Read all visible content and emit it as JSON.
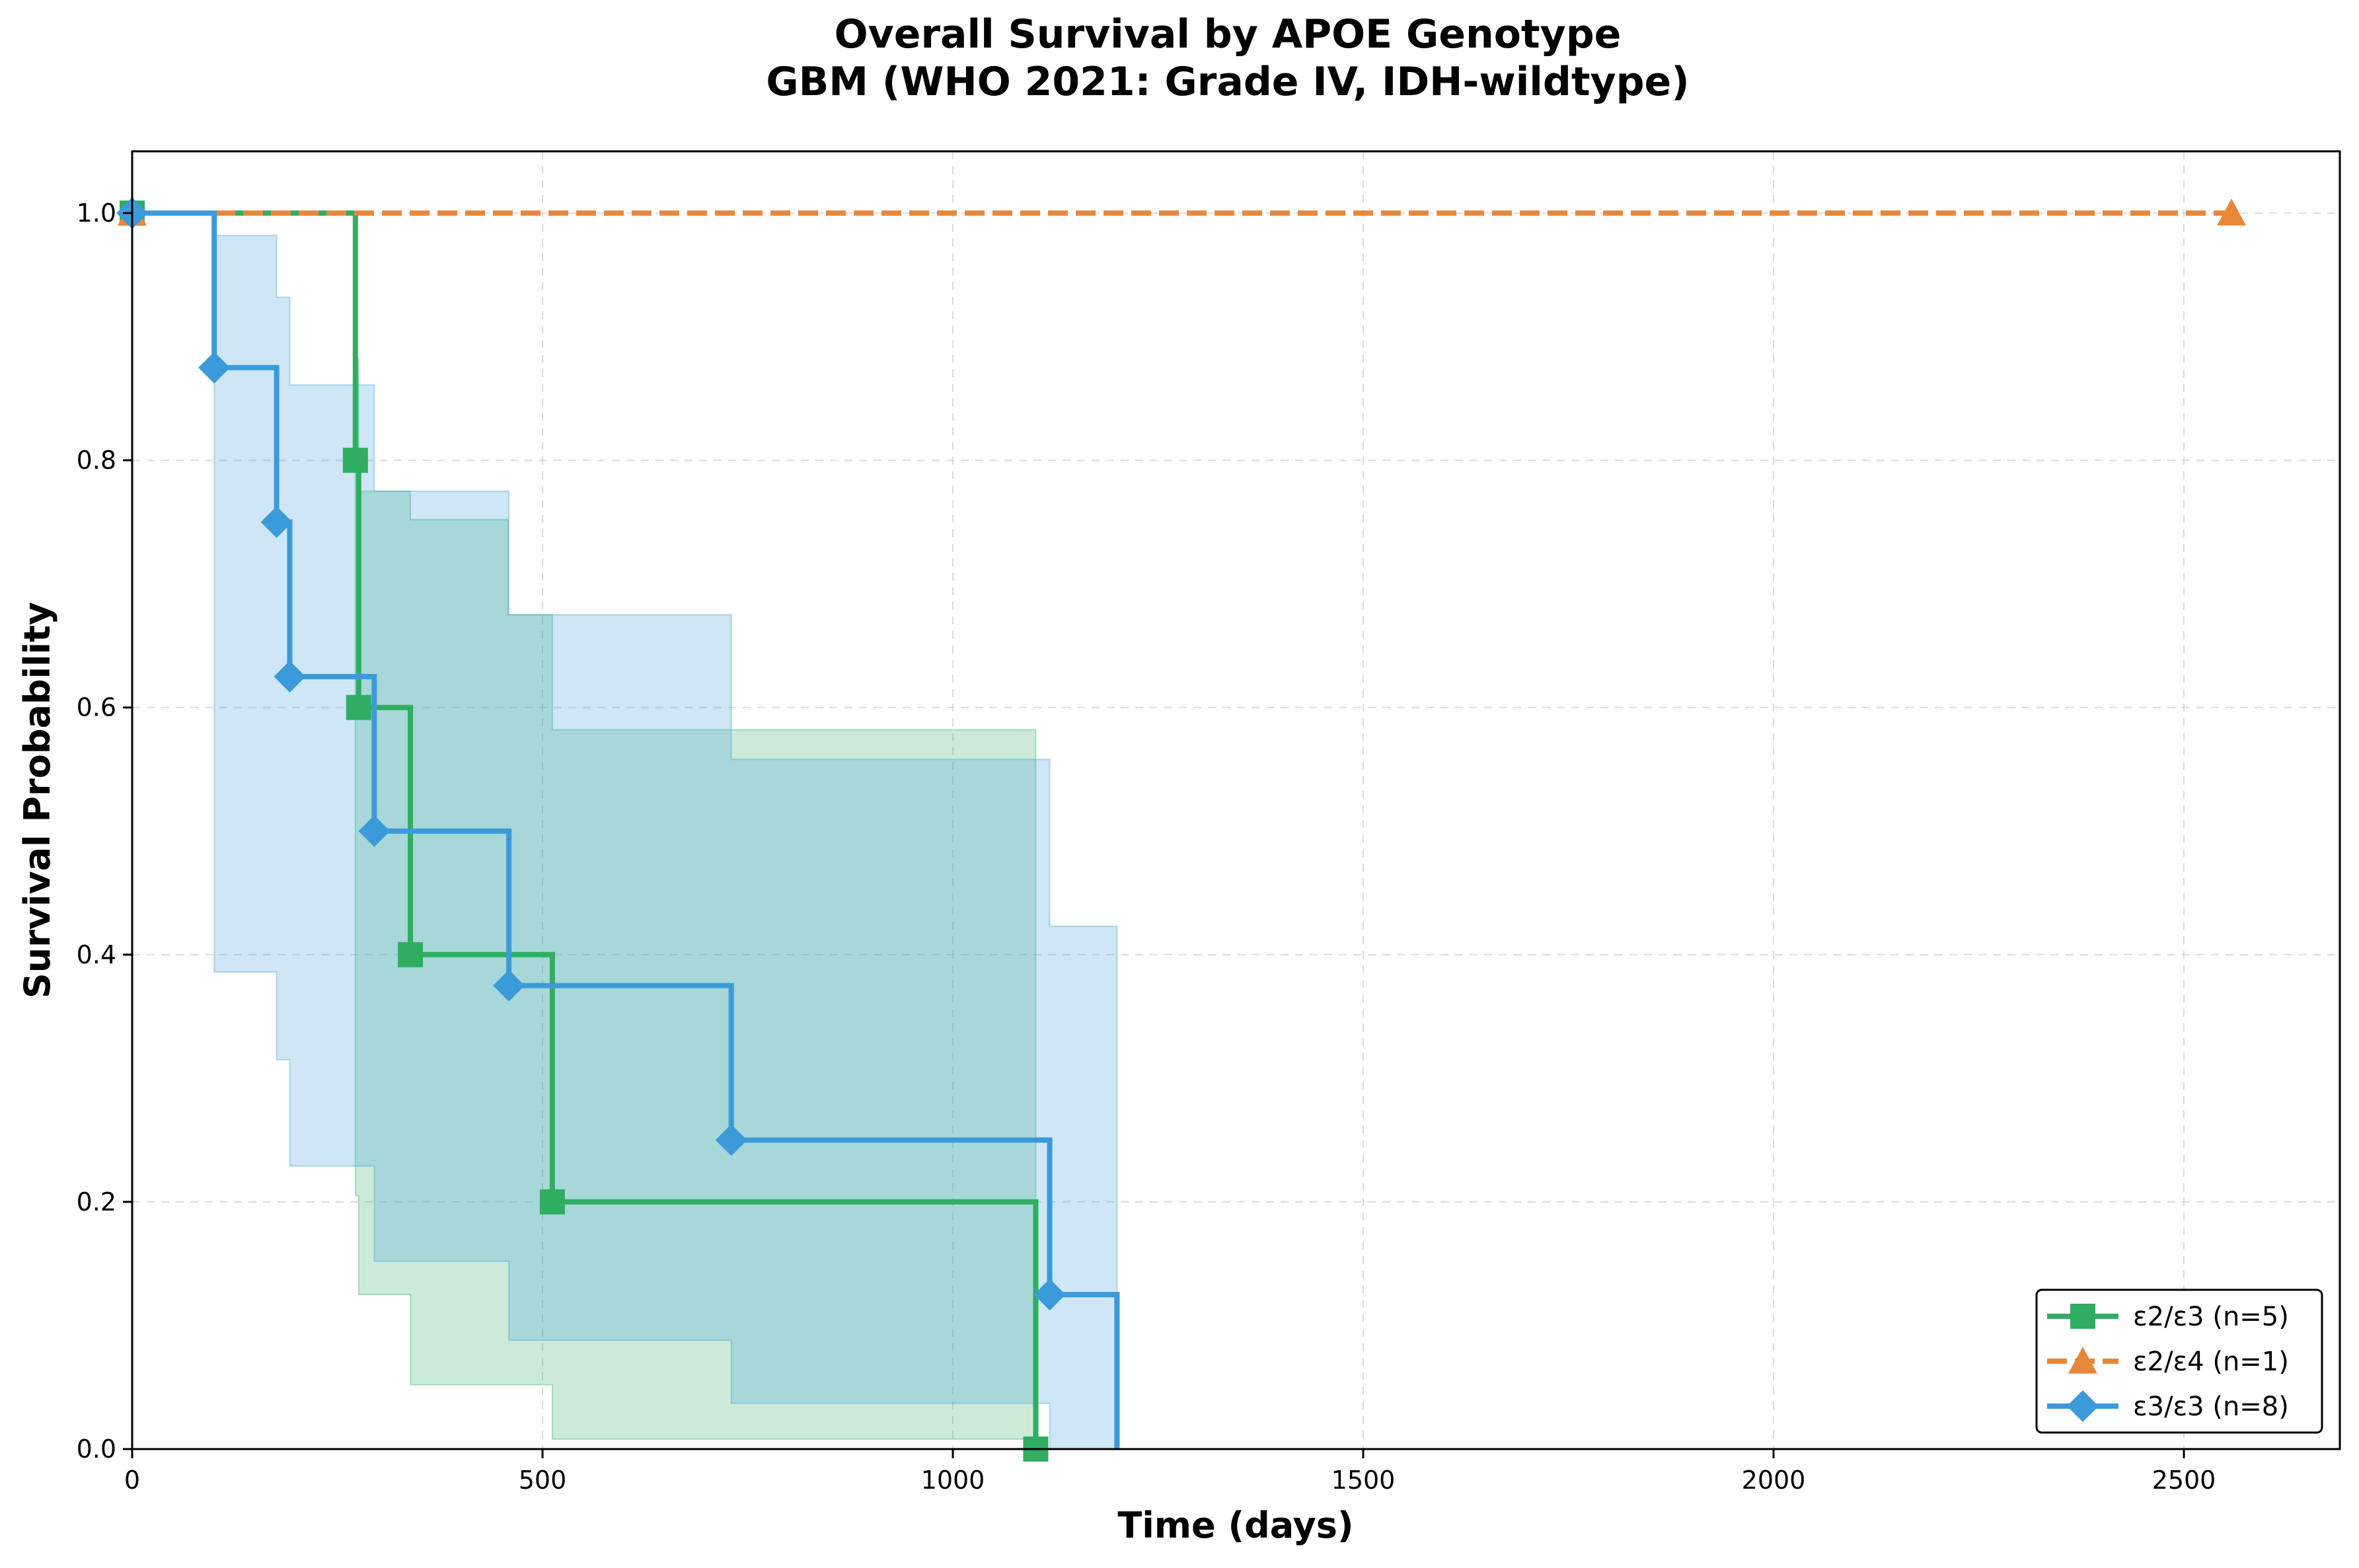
{
  "chart_data": {
    "type": "line",
    "subtype": "kaplan-meier step",
    "title_line1": "Overall Survival by APOE Genotype",
    "title_line2": "GBM (WHO 2021: Grade IV, IDH-wildtype)",
    "xlabel": "Time (days)",
    "ylabel": "Survival Probability",
    "xlim": [
      0,
      2690
    ],
    "ylim": [
      0,
      1.05
    ],
    "xticks": [
      0,
      500,
      1000,
      1500,
      2000,
      2500
    ],
    "yticks": [
      0.0,
      0.2,
      0.4,
      0.6,
      0.8,
      1.0
    ],
    "xtick_labels": [
      "0",
      "500",
      "1000",
      "1500",
      "2000",
      "2500"
    ],
    "ytick_labels": [
      "0.0",
      "0.2",
      "0.4",
      "0.6",
      "0.8",
      "1.0"
    ],
    "grid": true,
    "legend_position": "bottom-right",
    "series": [
      {
        "name": "ε2/ε3 (n=5)",
        "color": "#2fae62",
        "dash": "solid",
        "marker": "square",
        "times": [
          0,
          272,
          276,
          339,
          512,
          1101
        ],
        "survival": [
          1.0,
          0.8,
          0.6,
          0.4,
          0.2,
          0.0
        ],
        "ci_times": [
          272,
          276,
          339,
          458,
          512,
          1101
        ],
        "ci_lower": [
          0.205,
          0.125,
          0.052,
          0.052,
          0.008,
          0.008
        ],
        "ci_upper": [
          0.882,
          0.775,
          0.752,
          0.675,
          0.582,
          0.582
        ]
      },
      {
        "name": "ε2/ε4 (n=1)",
        "color": "#e8873a",
        "dash": "dashed",
        "marker": "triangle",
        "times": [
          0,
          2558
        ],
        "survival": [
          1.0,
          1.0
        ],
        "ci_times": [],
        "ci_lower": [],
        "ci_upper": []
      },
      {
        "name": "ε3/ε3 (n=8)",
        "color": "#3b9ad9",
        "dash": "solid",
        "marker": "diamond",
        "times": [
          0,
          100,
          176,
          192,
          295,
          459,
          730,
          1118,
          1200
        ],
        "survival": [
          1.0,
          0.875,
          0.75,
          0.625,
          0.5,
          0.375,
          0.25,
          0.125,
          0.0
        ],
        "ci_times": [
          100,
          176,
          192,
          295,
          459,
          730,
          1118,
          1200
        ],
        "ci_lower": [
          0.386,
          0.315,
          0.229,
          0.152,
          0.088,
          0.037,
          0.0,
          0.0
        ],
        "ci_upper": [
          0.982,
          0.932,
          0.861,
          0.775,
          0.675,
          0.558,
          0.423,
          0.0
        ]
      }
    ]
  }
}
